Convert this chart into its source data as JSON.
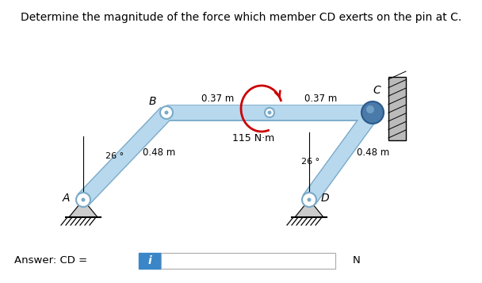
{
  "title": "Determine the magnitude of the force which member CD exerts on the pin at C.",
  "title_fontsize": 10,
  "answer_label": "Answer: CD = ",
  "answer_unit": "N",
  "angle_label": "26 °",
  "moment_label": "115 N·m",
  "dim_horiz_left": "0.37 m",
  "dim_horiz_right": "0.37 m",
  "dim_left_diag": "0.48 m",
  "dim_right_diag": "0.48 m",
  "label_A": "A",
  "label_B": "B",
  "label_C": "C",
  "label_D": "D",
  "beam_color": "#b8d8ee",
  "beam_edge_color": "#7aaac8",
  "pin_fill": "#6090b8",
  "pin_fill_dark": "#4a7aaa",
  "wall_color": "#bbbbbb",
  "ground_color": "#cccccc",
  "answer_box_blue": "#3a86c8",
  "answer_box_bg": "#f0f0f0",
  "answer_box_border": "#aaaaaa",
  "bg_color": "#ffffff",
  "moment_color": "#cc0000"
}
